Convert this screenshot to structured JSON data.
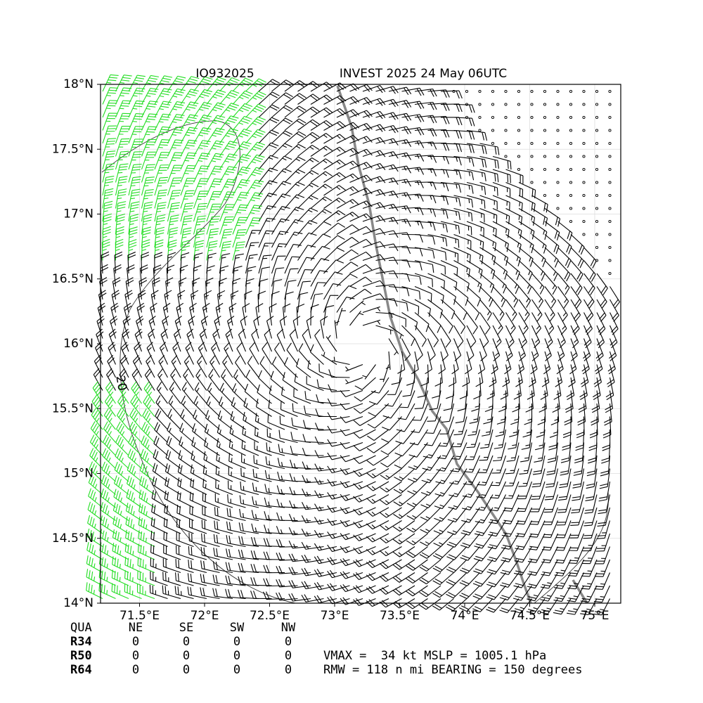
{
  "chart_data": {
    "type": "wind-barb",
    "title_left": "IO932025",
    "title_right": "INVEST 2025 24 May 06UTC",
    "xlim": [
      71.2,
      75.2
    ],
    "ylim": [
      14,
      18
    ],
    "xticks": [
      {
        "value": 71.5,
        "label": "71.5°E"
      },
      {
        "value": 72,
        "label": "72°E"
      },
      {
        "value": 72.5,
        "label": "72.5°E"
      },
      {
        "value": 73,
        "label": "73°E"
      },
      {
        "value": 73.5,
        "label": "73.5°E"
      },
      {
        "value": 74,
        "label": "74°E"
      },
      {
        "value": 74.5,
        "label": "74.5°E"
      },
      {
        "value": 75,
        "label": "75°E"
      }
    ],
    "yticks": [
      {
        "value": 14,
        "label": "14°N"
      },
      {
        "value": 14.5,
        "label": "14.5°N"
      },
      {
        "value": 15,
        "label": "15°N"
      },
      {
        "value": 15.5,
        "label": "15.5°N"
      },
      {
        "value": 16,
        "label": "16°N"
      },
      {
        "value": 16.5,
        "label": "16.5°N"
      },
      {
        "value": 17,
        "label": "17°N"
      },
      {
        "value": 17.5,
        "label": "17.5°N"
      },
      {
        "value": 18,
        "label": "18°N"
      }
    ],
    "grid": true,
    "contour_label": "20"
  },
  "radii_table": {
    "header": [
      "QUA",
      "NE",
      "SE",
      "SW",
      "NW"
    ],
    "rows": [
      [
        "R34",
        0,
        0,
        0,
        0
      ],
      [
        "R50",
        0,
        0,
        0,
        0
      ],
      [
        "R64",
        0,
        0,
        0,
        0
      ]
    ]
  },
  "summary": [
    "VMAX =  34 kt MSLP = 1005.1 hPa",
    "RMW = 118 n mi BEARING = 150 degrees"
  ]
}
